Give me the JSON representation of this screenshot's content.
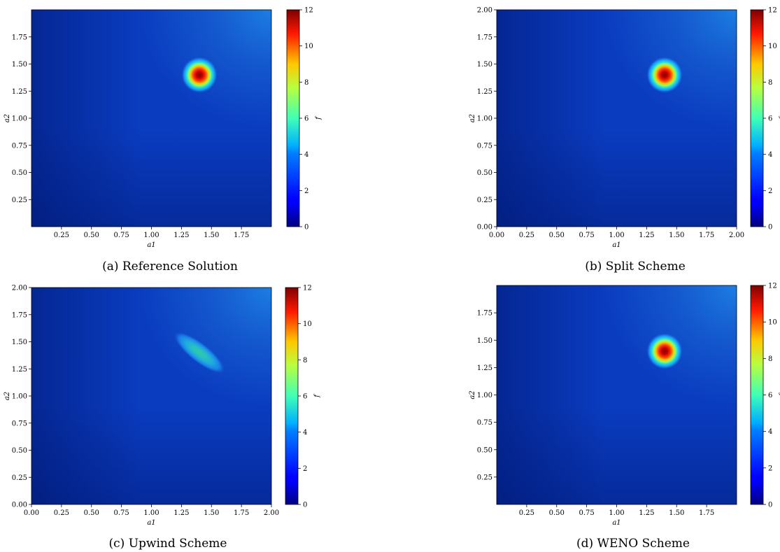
{
  "chart_data": [
    {
      "type": "heatmap",
      "caption": "(a) Reference Solution",
      "xlabel": "a1",
      "ylabel": "a2",
      "colorbar_label": "f",
      "xlim": [
        0,
        2
      ],
      "ylim": [
        0,
        2
      ],
      "x_ticks": [
        "0.25",
        "0.50",
        "0.75",
        "1.00",
        "1.25",
        "1.50",
        "1.75"
      ],
      "y_ticks": [
        "0.25",
        "0.50",
        "0.75",
        "1.00",
        "1.25",
        "1.50",
        "1.75"
      ],
      "colorbar_ticks": [
        "0",
        "2",
        "4",
        "6",
        "8",
        "10",
        "12"
      ],
      "clim": [
        0,
        12
      ],
      "colormap": "jet",
      "peak": {
        "a1": 1.4,
        "a2": 1.4,
        "value": 12,
        "shape": "circular"
      }
    },
    {
      "type": "heatmap",
      "caption": "(b) Split Scheme",
      "xlabel": "a1",
      "ylabel": "a2",
      "colorbar_label": "f",
      "xlim": [
        0,
        2
      ],
      "ylim": [
        0,
        2
      ],
      "x_ticks": [
        "0.00",
        "0.25",
        "0.50",
        "0.75",
        "1.00",
        "1.25",
        "1.50",
        "1.75",
        "2.00"
      ],
      "y_ticks": [
        "0.00",
        "0.25",
        "0.50",
        "0.75",
        "1.00",
        "1.25",
        "1.50",
        "1.75",
        "2.00"
      ],
      "colorbar_ticks": [
        "0",
        "2",
        "4",
        "6",
        "8",
        "10",
        "12"
      ],
      "clim": [
        0,
        12
      ],
      "colormap": "jet",
      "peak": {
        "a1": 1.4,
        "a2": 1.4,
        "value": 12,
        "shape": "circular"
      }
    },
    {
      "type": "heatmap",
      "caption": "(c) Upwind Scheme",
      "xlabel": "a1",
      "ylabel": "a2",
      "colorbar_label": "f",
      "xlim": [
        0,
        2
      ],
      "ylim": [
        0,
        2
      ],
      "x_ticks": [
        "0.00",
        "0.25",
        "0.50",
        "0.75",
        "1.00",
        "1.25",
        "1.50",
        "1.75",
        "2.00"
      ],
      "y_ticks": [
        "0.00",
        "0.25",
        "0.50",
        "0.75",
        "1.00",
        "1.25",
        "1.50",
        "1.75",
        "2.00"
      ],
      "colorbar_ticks": [
        "0",
        "2",
        "4",
        "6",
        "8",
        "10",
        "12"
      ],
      "clim": [
        0,
        12
      ],
      "colormap": "jet",
      "peak": {
        "a1": 1.4,
        "a2": 1.4,
        "value": 5,
        "shape": "elongated-diagonal"
      }
    },
    {
      "type": "heatmap",
      "caption": "(d) WENO Scheme",
      "xlabel": "a1",
      "ylabel": "a2",
      "colorbar_label": "f",
      "xlim": [
        0,
        2
      ],
      "ylim": [
        0,
        2
      ],
      "x_ticks": [
        "0.25",
        "0.50",
        "0.75",
        "1.00",
        "1.25",
        "1.50",
        "1.75"
      ],
      "y_ticks": [
        "0.25",
        "0.50",
        "0.75",
        "1.00",
        "1.25",
        "1.50",
        "1.75"
      ],
      "colorbar_ticks": [
        "0",
        "2",
        "4",
        "6",
        "8",
        "10",
        "12"
      ],
      "clim": [
        0,
        12
      ],
      "colormap": "jet",
      "peak": {
        "a1": 1.4,
        "a2": 1.4,
        "value": 12,
        "shape": "circular"
      }
    }
  ]
}
